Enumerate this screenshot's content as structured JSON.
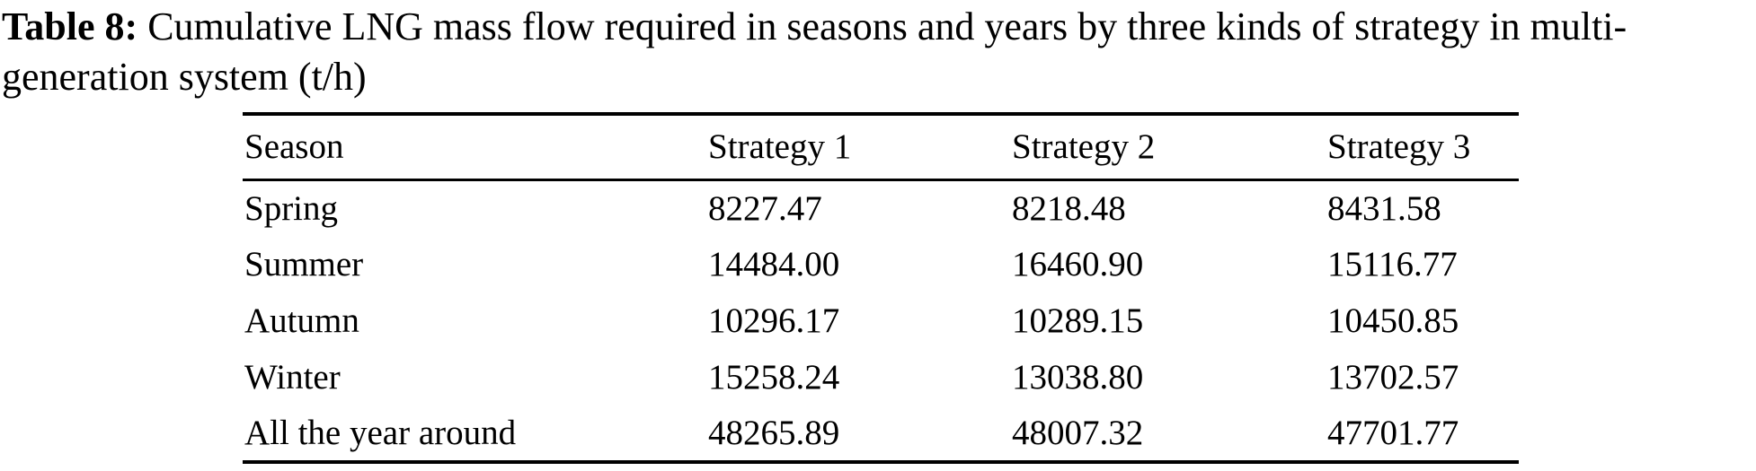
{
  "caption": {
    "label": "Table 8:",
    "line1": "Cumulative LNG mass flow required in seasons and years by three kinds of strategy in multi-",
    "line2": "generation system (t/h)"
  },
  "table": {
    "columns": [
      "Season",
      "Strategy 1",
      "Strategy 2",
      "Strategy 3"
    ],
    "rows": [
      {
        "season": "Spring",
        "values": [
          "8227.47",
          "8218.48",
          "8431.58"
        ]
      },
      {
        "season": "Summer",
        "values": [
          "14484.00",
          "16460.90",
          "15116.77"
        ]
      },
      {
        "season": "Autumn",
        "values": [
          "10296.17",
          "10289.15",
          "10450.85"
        ]
      },
      {
        "season": "Winter",
        "values": [
          "15258.24",
          "13038.80",
          "13702.57"
        ]
      },
      {
        "season": "All the year around",
        "values": [
          "48265.89",
          "48007.32",
          "47701.77"
        ]
      }
    ]
  },
  "colors": {
    "text": "#000000",
    "background": "#ffffff",
    "rule": "#000000"
  }
}
